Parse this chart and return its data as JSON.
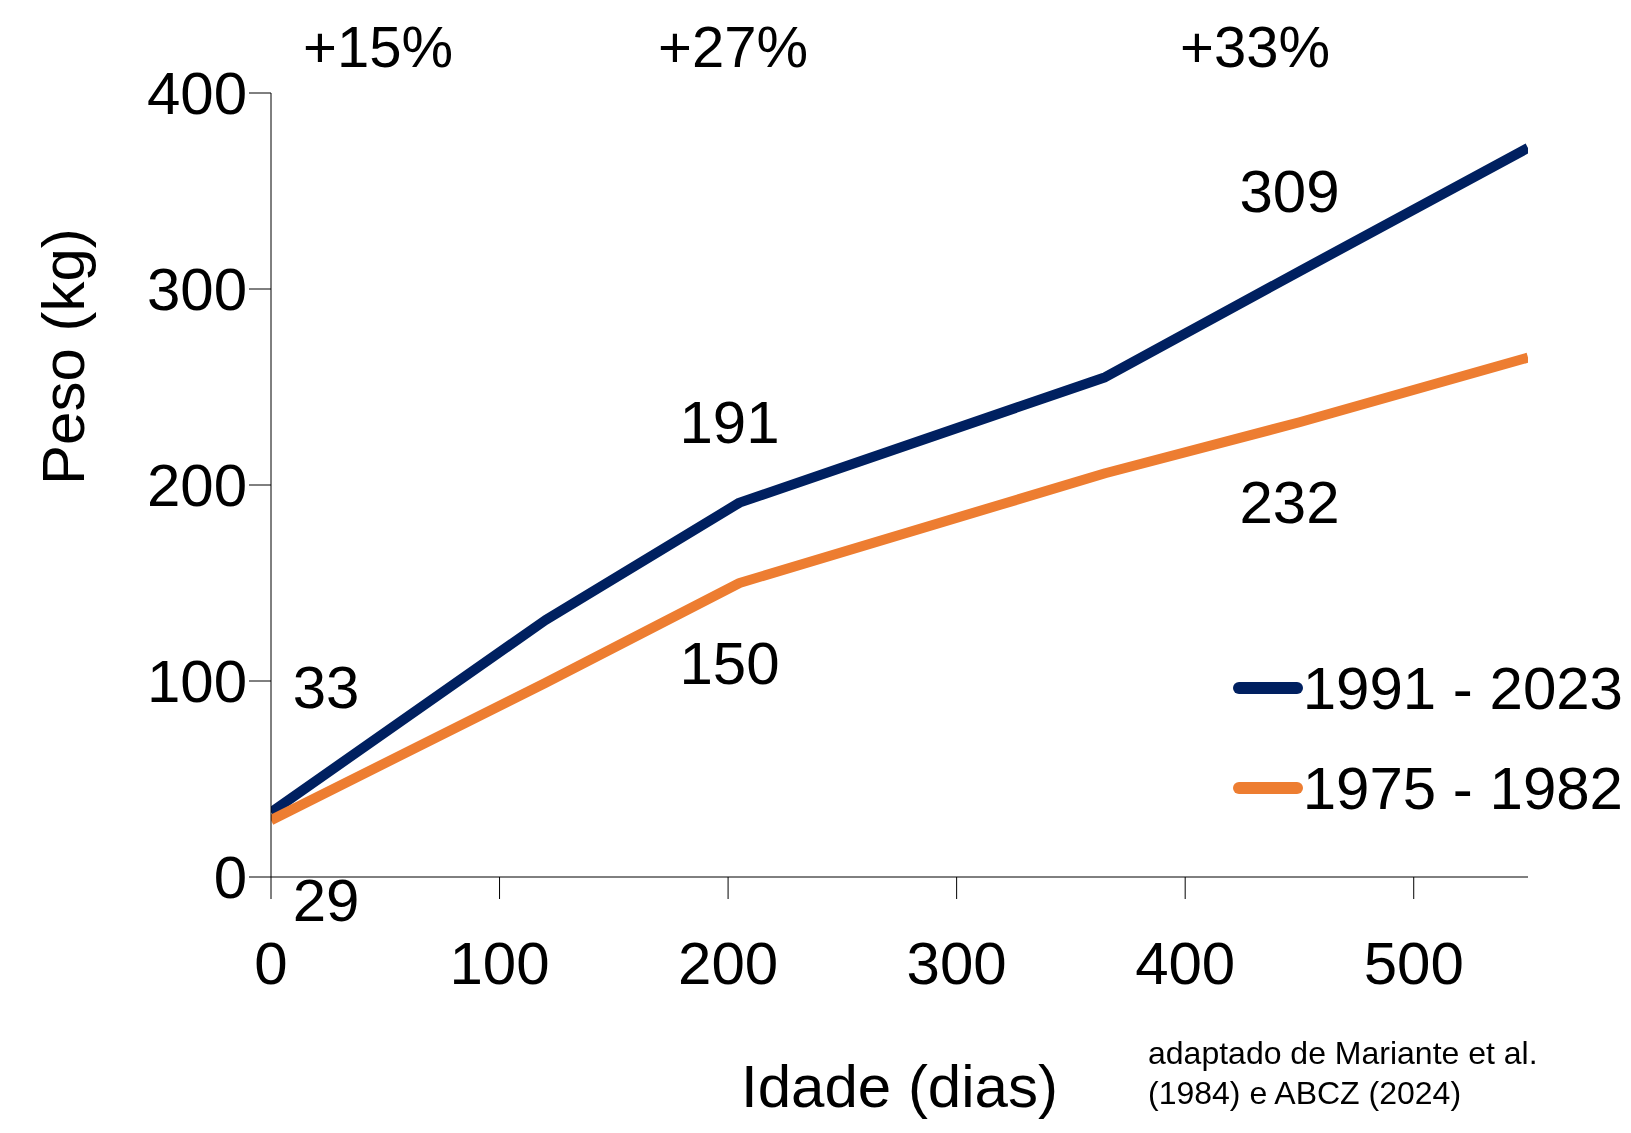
{
  "chart_data": {
    "type": "line",
    "xlabel": "Idade (dias)",
    "ylabel": "Peso (kg)",
    "x": [
      0,
      120,
      205,
      365,
      450,
      550
    ],
    "series": [
      {
        "name": "1991 - 2023",
        "color": "#002060",
        "values": [
          33,
          131,
          191,
          255,
          309,
          372
        ],
        "value_labels": [
          "33",
          null,
          "191",
          null,
          "309",
          null
        ]
      },
      {
        "name": "1975 - 1982",
        "color": "#ed7d31",
        "values": [
          29,
          99,
          150,
          206,
          232,
          265
        ],
        "value_labels": [
          "29",
          null,
          "150",
          null,
          "232",
          null
        ]
      }
    ],
    "xlim": [
      0,
      550
    ],
    "xticks": [
      0,
      100,
      200,
      300,
      400,
      500
    ],
    "ylim": [
      0,
      400
    ],
    "yticks": [
      0,
      100,
      200,
      300,
      400
    ],
    "grid": false,
    "legend": "bottom right",
    "marker": "none",
    "line_style": "solid",
    "annotations": [
      "+15%",
      "+27%",
      "+33%",
      "adaptado de Mariante et al. (1984) e ABCZ (2024)"
    ]
  }
}
